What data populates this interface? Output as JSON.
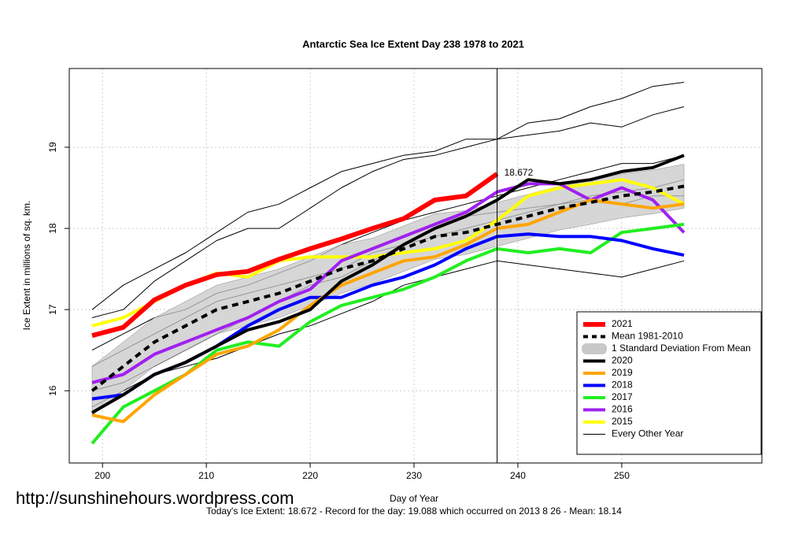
{
  "chart_data": {
    "type": "line",
    "title": "Antarctic Sea Ice Extent Day 238 1978 to 2021",
    "x_label": "Day of Year",
    "y_label": "Ice Extent in millions of sq. km.",
    "footnote": "Today's Ice Extent: 18.672  - Record for the day: 19.088 which occurred on 2013 8 26  - Mean: 18.14",
    "watermark": "http://sunshinehours.wordpress.com",
    "x": [
      199,
      202,
      205,
      208,
      211,
      214,
      217,
      220,
      223,
      226,
      229,
      232,
      235,
      238,
      241,
      244,
      247,
      250,
      253,
      256
    ],
    "xlim": [
      196.8,
      263.5
    ],
    "ylim": [
      15.11,
      19.97
    ],
    "xticks": [
      200,
      210,
      220,
      230,
      240,
      250
    ],
    "yticks": [
      16,
      17,
      18,
      19
    ],
    "grid": true,
    "vline": 238,
    "legend": "bottom-right",
    "annotations": [
      {
        "x": 238,
        "y": 18.672,
        "text": "18.672",
        "color": "#ff0000"
      }
    ],
    "series": [
      {
        "name": "2021",
        "color": "#ff0000",
        "width": 6,
        "values": [
          16.68,
          16.78,
          17.12,
          17.3,
          17.43,
          17.47,
          17.62,
          17.75,
          17.87,
          18.0,
          18.12,
          18.35,
          18.4,
          18.672,
          null,
          null,
          null,
          null,
          null,
          null
        ]
      },
      {
        "name": "Mean 1981-2010",
        "color": "#000000",
        "width": 4,
        "dash": true,
        "values": [
          16.0,
          16.3,
          16.6,
          16.8,
          17.0,
          17.1,
          17.2,
          17.35,
          17.5,
          17.6,
          17.75,
          17.9,
          17.95,
          18.05,
          18.15,
          18.25,
          18.32,
          18.4,
          18.45,
          18.52
        ]
      },
      {
        "name": "1 Standard Deviation From Mean",
        "color": "#c8c8c8",
        "lower": [
          15.7,
          16.0,
          16.3,
          16.5,
          16.7,
          16.8,
          16.9,
          17.05,
          17.2,
          17.32,
          17.47,
          17.62,
          17.68,
          17.78,
          17.88,
          17.98,
          18.05,
          18.13,
          18.18,
          18.25
        ],
        "upper": [
          16.3,
          16.6,
          16.9,
          17.1,
          17.3,
          17.4,
          17.5,
          17.65,
          17.8,
          17.88,
          18.03,
          18.18,
          18.22,
          18.32,
          18.42,
          18.52,
          18.59,
          18.67,
          18.72,
          18.79
        ]
      },
      {
        "name": "2020",
        "color": "#000000",
        "width": 4,
        "values": [
          15.73,
          15.95,
          16.2,
          16.35,
          16.55,
          16.75,
          16.85,
          17.0,
          17.35,
          17.55,
          17.8,
          18.0,
          18.15,
          18.35,
          18.6,
          18.55,
          18.6,
          18.7,
          18.75,
          18.9
        ]
      },
      {
        "name": "2019",
        "color": "#ffa500",
        "width": 4,
        "values": [
          15.7,
          15.62,
          15.95,
          16.2,
          16.45,
          16.55,
          16.75,
          17.05,
          17.3,
          17.45,
          17.6,
          17.65,
          17.8,
          18.0,
          18.05,
          18.2,
          18.35,
          18.3,
          18.25,
          18.3
        ]
      },
      {
        "name": "2018",
        "color": "#0000ff",
        "width": 4,
        "values": [
          15.9,
          15.95,
          16.2,
          16.35,
          16.55,
          16.8,
          17.0,
          17.15,
          17.15,
          17.3,
          17.4,
          17.55,
          17.75,
          17.9,
          17.93,
          17.9,
          17.9,
          17.85,
          17.75,
          17.67
        ]
      },
      {
        "name": "2017",
        "color": "#22ee22",
        "width": 4,
        "values": [
          15.35,
          15.8,
          16.0,
          16.2,
          16.5,
          16.6,
          16.55,
          16.85,
          17.05,
          17.15,
          17.25,
          17.4,
          17.6,
          17.75,
          17.7,
          17.75,
          17.7,
          17.95,
          18.0,
          18.05
        ]
      },
      {
        "name": "2016",
        "color": "#a020f0",
        "width": 4,
        "values": [
          16.1,
          16.2,
          16.45,
          16.6,
          16.75,
          16.9,
          17.1,
          17.25,
          17.6,
          17.75,
          17.9,
          18.05,
          18.2,
          18.45,
          18.55,
          18.55,
          18.35,
          18.5,
          18.35,
          17.95
        ]
      },
      {
        "name": "2015",
        "color": "#ffff00",
        "width": 4,
        "values": [
          16.8,
          16.9,
          17.1,
          17.3,
          17.45,
          17.4,
          17.6,
          17.65,
          17.65,
          17.65,
          17.7,
          17.75,
          17.85,
          18.1,
          18.4,
          18.5,
          18.55,
          18.6,
          18.5,
          18.3
        ]
      },
      {
        "name": "Every Other Year",
        "color": "#000000",
        "width": 1,
        "lines": [
          [
            17.0,
            17.3,
            17.5,
            17.7,
            17.95,
            18.2,
            18.3,
            18.5,
            18.7,
            18.8,
            18.9,
            18.95,
            19.1,
            19.1,
            19.3,
            19.35,
            19.5,
            19.6,
            19.75,
            19.8
          ],
          [
            16.9,
            17.0,
            17.35,
            17.6,
            17.85,
            18.0,
            18.0,
            18.25,
            18.5,
            18.7,
            18.85,
            18.9,
            19.0,
            19.1,
            19.15,
            19.2,
            19.3,
            19.25,
            19.4,
            19.5
          ],
          [
            15.8,
            16.0,
            16.2,
            16.3,
            16.4,
            16.55,
            16.7,
            16.8,
            16.95,
            17.1,
            17.3,
            17.4,
            17.5,
            17.6,
            17.55,
            17.5,
            17.45,
            17.4,
            17.5,
            17.6
          ],
          [
            16.3,
            16.5,
            16.7,
            16.9,
            17.1,
            17.2,
            17.3,
            17.4,
            17.5,
            17.7,
            17.8,
            17.9,
            18.0,
            18.1,
            18.2,
            18.3,
            18.4,
            18.45,
            18.5,
            18.6
          ],
          [
            16.5,
            16.7,
            16.9,
            17.0,
            17.2,
            17.3,
            17.45,
            17.6,
            17.8,
            17.95,
            18.1,
            18.2,
            18.3,
            18.4,
            18.5,
            18.6,
            18.7,
            18.8,
            18.8,
            18.9
          ],
          [
            16.0,
            16.1,
            16.3,
            16.5,
            16.7,
            16.9,
            17.1,
            17.3,
            17.4,
            17.6,
            17.8,
            18.0,
            18.15,
            18.2,
            18.25,
            18.3,
            18.35,
            18.3,
            18.4,
            18.4
          ]
        ]
      }
    ]
  }
}
